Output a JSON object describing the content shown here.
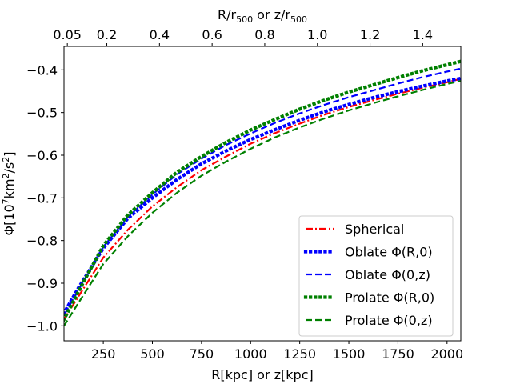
{
  "chart_data": {
    "type": "line",
    "xlabel_bottom": "R[kpc] or z[kpc]",
    "xlabel_top": "R/r500 or z/r500",
    "ylabel": "Φ[10^7 km^2/s^2]",
    "x_range": [
      50,
      2070
    ],
    "y_range": [
      -1.035,
      -0.345
    ],
    "x_ticks": [
      250,
      500,
      750,
      1000,
      1250,
      1500,
      1750,
      2000
    ],
    "x_tick_labels": [
      "250",
      "500",
      "750",
      "1000",
      "1250",
      "1500",
      "1750",
      "2000"
    ],
    "y_ticks": [
      -1.0,
      -0.9,
      -0.8,
      -0.7,
      -0.6,
      -0.5,
      -0.4
    ],
    "y_tick_labels": [
      "−1.0",
      "−0.9",
      "−0.8",
      "−0.7",
      "−0.6",
      "−0.5",
      "−0.4"
    ],
    "top_ticks": [
      0.05,
      0.2,
      0.4,
      0.6,
      0.8,
      1.0,
      1.2,
      1.4
    ],
    "top_tick_labels": [
      "0.05",
      "0.2",
      "0.4",
      "0.6",
      "0.8",
      "1.0",
      "1.2",
      "1.4"
    ],
    "r500_kpc": 1340,
    "legend_position": "lower-right",
    "series": [
      {
        "name": "Spherical",
        "color": "#ff0000",
        "style": "dashdot",
        "x": [
          50,
          125,
          250,
          375,
          500,
          625,
          750,
          875,
          1000,
          1125,
          1250,
          1375,
          1500,
          1625,
          1750,
          1875,
          2000,
          2070
        ],
        "y": [
          -0.985,
          -0.93,
          -0.84,
          -0.775,
          -0.72,
          -0.675,
          -0.635,
          -0.603,
          -0.573,
          -0.548,
          -0.526,
          -0.505,
          -0.487,
          -0.471,
          -0.456,
          -0.442,
          -0.429,
          -0.421
        ]
      },
      {
        "name": "Oblate Φ(R,0)",
        "color": "#0000ff",
        "style": "dotted",
        "x": [
          50,
          125,
          250,
          375,
          500,
          625,
          750,
          875,
          1000,
          1125,
          1250,
          1375,
          1500,
          1625,
          1750,
          1875,
          2000,
          2070
        ],
        "y": [
          -0.97,
          -0.91,
          -0.818,
          -0.748,
          -0.7,
          -0.657,
          -0.62,
          -0.59,
          -0.563,
          -0.54,
          -0.518,
          -0.498,
          -0.481,
          -0.465,
          -0.451,
          -0.438,
          -0.426,
          -0.42
        ]
      },
      {
        "name": "Oblate Φ(0,z)",
        "color": "#0000ff",
        "style": "dashed",
        "x": [
          50,
          125,
          250,
          375,
          500,
          625,
          750,
          875,
          1000,
          1125,
          1250,
          1375,
          1500,
          1625,
          1750,
          1875,
          2000,
          2070
        ],
        "y": [
          -0.975,
          -0.915,
          -0.815,
          -0.745,
          -0.692,
          -0.645,
          -0.608,
          -0.576,
          -0.549,
          -0.524,
          -0.502,
          -0.482,
          -0.464,
          -0.448,
          -0.432,
          -0.417,
          -0.404,
          -0.397
        ]
      },
      {
        "name": "Prolate Φ(R,0)",
        "color": "#008000",
        "style": "dotted",
        "x": [
          50,
          125,
          250,
          375,
          500,
          625,
          750,
          875,
          1000,
          1125,
          1250,
          1375,
          1500,
          1625,
          1750,
          1875,
          2000,
          2070
        ],
        "y": [
          -0.985,
          -0.918,
          -0.812,
          -0.74,
          -0.688,
          -0.64,
          -0.603,
          -0.57,
          -0.541,
          -0.516,
          -0.492,
          -0.471,
          -0.452,
          -0.435,
          -0.418,
          -0.402,
          -0.388,
          -0.38
        ]
      },
      {
        "name": "Prolate Φ(0,z)",
        "color": "#008000",
        "style": "dashed",
        "x": [
          50,
          125,
          250,
          375,
          500,
          625,
          750,
          875,
          1000,
          1125,
          1250,
          1375,
          1500,
          1625,
          1750,
          1875,
          2000,
          2070
        ],
        "y": [
          -1.0,
          -0.945,
          -0.855,
          -0.79,
          -0.735,
          -0.688,
          -0.648,
          -0.615,
          -0.585,
          -0.558,
          -0.535,
          -0.514,
          -0.495,
          -0.478,
          -0.462,
          -0.447,
          -0.433,
          -0.426
        ]
      }
    ]
  }
}
